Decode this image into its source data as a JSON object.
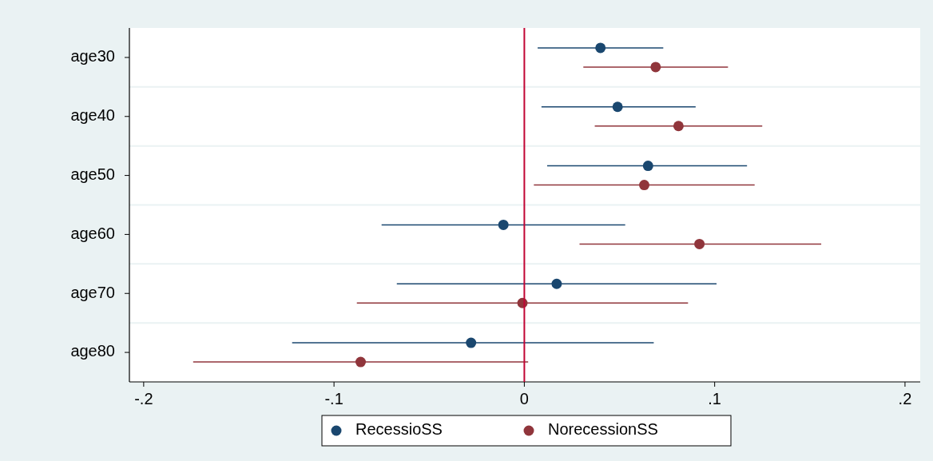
{
  "chart_data": {
    "type": "scatter",
    "orientation": "horizontal",
    "categories": [
      "age30",
      "age40",
      "age50",
      "age60",
      "age70",
      "age80"
    ],
    "series": [
      {
        "name": "RecessioSS",
        "color": "#1a476f",
        "values": [
          0.04,
          0.049,
          0.065,
          -0.011,
          0.017,
          -0.028
        ],
        "errors": [
          [
            0.007,
            0.073
          ],
          [
            0.009,
            0.09
          ],
          [
            0.012,
            0.117
          ],
          [
            -0.075,
            0.053
          ],
          [
            -0.067,
            0.101
          ],
          [
            -0.122,
            0.068
          ]
        ]
      },
      {
        "name": "NorecessionSS",
        "color": "#90353b",
        "values": [
          0.069,
          0.081,
          0.063,
          0.092,
          -0.001,
          -0.086
        ],
        "errors": [
          [
            0.031,
            0.107
          ],
          [
            0.037,
            0.125
          ],
          [
            0.005,
            0.121
          ],
          [
            0.029,
            0.156
          ],
          [
            -0.088,
            0.086
          ],
          [
            -0.174,
            0.002
          ]
        ]
      }
    ],
    "xlim": [
      -0.2075,
      0.208
    ],
    "xticks": [
      {
        "value": -0.2,
        "label": "-.2"
      },
      {
        "value": -0.1,
        "label": "-.1"
      },
      0,
      {
        "value": 0.1,
        "label": ".1"
      },
      {
        "value": 0.2,
        "label": ".2"
      }
    ],
    "ref_lines": [
      {
        "axis": "x",
        "value": 0,
        "color": "#c10534"
      }
    ],
    "grid": "y",
    "legend": "bottom",
    "marker": "circle"
  }
}
